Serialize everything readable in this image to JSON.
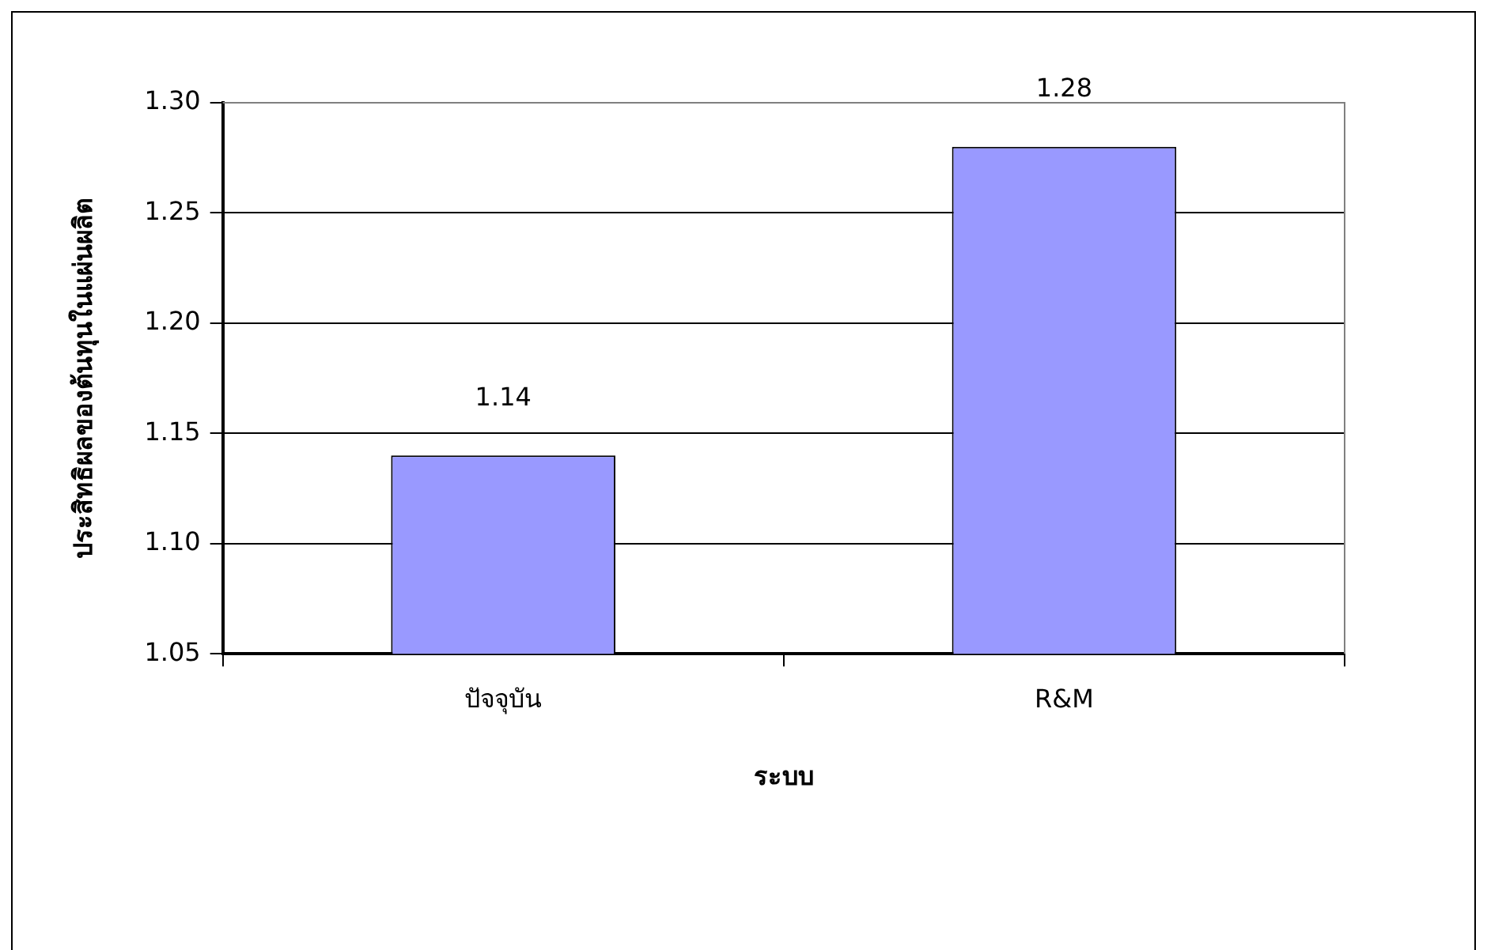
{
  "chart_data": {
    "type": "bar",
    "xlabel": "ระบบ",
    "ylabel": "ประสิทธิผลของต้นทุนในแผ่นผลิต",
    "categories": [
      "ปัจจุบัน",
      "R&M"
    ],
    "values": [
      1.14,
      1.28
    ],
    "color": "#9999ff",
    "ylim": [
      1.05,
      1.3
    ],
    "yticks": [
      1.05,
      {
        "value": 1.1,
        "label": "1.10"
      },
      1.15,
      {
        "value": 1.2,
        "label": "1.20"
      },
      1.25,
      {
        "value": 1.3,
        "label": "1.30"
      }
    ],
    "grid": "y",
    "data_labels": true,
    "legend": false
  }
}
